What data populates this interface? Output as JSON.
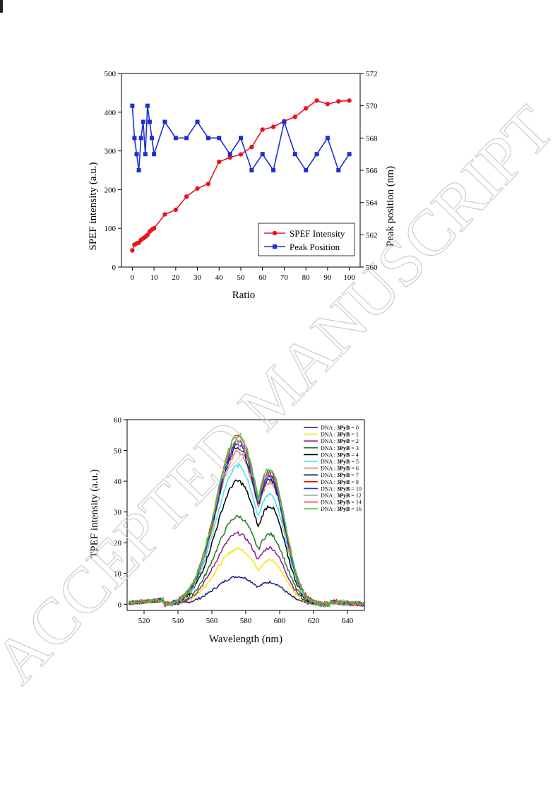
{
  "watermark": "ACCEPTED MANUSCRIPT",
  "chart_data": [
    {
      "type": "line",
      "xlabel": "Ratio",
      "ylabel": "SPEF intensity (a.u.)",
      "y2label": "Peak position (nm)",
      "xlim": [
        -5,
        105
      ],
      "ylim": [
        0,
        500
      ],
      "y2lim": [
        560,
        572
      ],
      "xticks": [
        0,
        10,
        20,
        30,
        40,
        50,
        60,
        70,
        80,
        90,
        100
      ],
      "yticks": [
        0,
        100,
        200,
        300,
        400,
        500
      ],
      "y2ticks": [
        560,
        562,
        564,
        566,
        568,
        570,
        572
      ],
      "legend_position": "bottom-right",
      "series": [
        {
          "name": "SPEF Intensity",
          "axis": "left",
          "color": "#e8141c",
          "marker": "circle",
          "x": [
            0,
            1,
            2,
            3,
            4,
            5,
            6,
            7,
            8,
            9,
            10,
            15,
            20,
            25,
            30,
            35,
            40,
            45,
            50,
            55,
            60,
            65,
            70,
            75,
            80,
            85,
            90,
            95,
            100
          ],
          "values": [
            43,
            58,
            61,
            63,
            70,
            74,
            78,
            83,
            92,
            97,
            100,
            136,
            148,
            182,
            203,
            215,
            272,
            283,
            291,
            310,
            355,
            362,
            377,
            388,
            410,
            430,
            421,
            428,
            430
          ]
        },
        {
          "name": "Peak Position",
          "axis": "right",
          "color": "#1c2fd6",
          "marker": "square",
          "x": [
            0,
            1,
            2,
            3,
            4,
            5,
            6,
            7,
            8,
            9,
            10,
            15,
            20,
            25,
            30,
            35,
            40,
            45,
            50,
            55,
            60,
            65,
            70,
            75,
            80,
            85,
            90,
            95,
            100
          ],
          "values": [
            570,
            568,
            567,
            566,
            568,
            569,
            567,
            570,
            569,
            568,
            567,
            569,
            568,
            568,
            569,
            568,
            568,
            567,
            568,
            566,
            567,
            566,
            569,
            567,
            566,
            567,
            568,
            566,
            567
          ]
        }
      ]
    },
    {
      "type": "line",
      "xlabel": "Wavelength (nm)",
      "ylabel": "TPEF intensity (a.u.)",
      "xlim": [
        510,
        650
      ],
      "ylim": [
        -2,
        60
      ],
      "xticks": [
        520,
        540,
        560,
        580,
        600,
        620,
        640
      ],
      "yticks": [
        0,
        10,
        20,
        30,
        40,
        50,
        60
      ],
      "legend_position": "top-right",
      "legend_prefix": "DNA : ",
      "legend_bold": "3PyB",
      "series": [
        {
          "name": "DNA : 3PyB = 0",
          "ratio": "0",
          "color": "#1a1a8a",
          "peak": 9
        },
        {
          "name": "DNA : 3PyB = 1",
          "ratio": "1",
          "color": "#f2e600",
          "peak": 18
        },
        {
          "name": "DNA : 3PyB = 2",
          "ratio": "2",
          "color": "#8b1a8b",
          "peak": 23
        },
        {
          "name": "DNA : 3PyB = 3",
          "ratio": "3",
          "color": "#1f7a1f",
          "peak": 28.5
        },
        {
          "name": "DNA : 3PyB = 4",
          "ratio": "4",
          "color": "#000000",
          "peak": 40
        },
        {
          "name": "DNA : 3PyB = 5",
          "ratio": "5",
          "color": "#33e5f0",
          "peak": 45
        },
        {
          "name": "DNA : 3PyB = 6",
          "ratio": "6",
          "color": "#f07a5a",
          "peak": 49.5
        },
        {
          "name": "DNA : 3PyB = 7",
          "ratio": "7",
          "color": "#1a1a6b",
          "peak": 51
        },
        {
          "name": "DNA : 3PyB = 8",
          "ratio": "8",
          "color": "#e01010",
          "peak": 53
        },
        {
          "name": "DNA : 3PyB = 10",
          "ratio": "10",
          "color": "#1a2fe0",
          "peak": 52
        },
        {
          "name": "DNA : 3PyB = 12",
          "ratio": "12",
          "color": "#a0a0a0",
          "peak": 53.5
        },
        {
          "name": "DNA : 3PyB = 14",
          "ratio": "14",
          "color": "#f03a3a",
          "peak": 54.5
        },
        {
          "name": "DNA : 3PyB = 16",
          "ratio": "16",
          "color": "#33cc33",
          "peak": 55
        }
      ]
    }
  ]
}
